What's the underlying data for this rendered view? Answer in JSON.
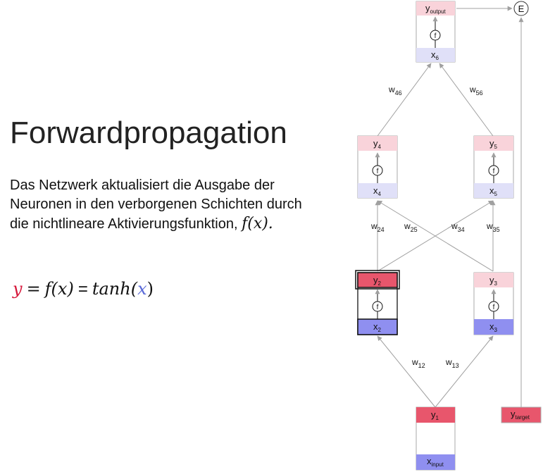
{
  "title": "Forwardpropagation",
  "description": "Das Netzwerk aktualisiert die Ausgabe der Neuronen in den verborgenen Schichten durch die nichtlineare Aktivierungsfunktion,",
  "description_math": "f(x).",
  "formula": {
    "y": "y",
    "eq": "=",
    "fx": "f(x)",
    "eq2": "=",
    "tanh": "tanh(",
    "x": "x",
    "close": ")"
  },
  "colors": {
    "y_active": "#e8566c",
    "y_light": "#f9d3da",
    "x_active": "#8f8ff0",
    "x_light": "#e0e0f8",
    "formula_y": "#d6173a",
    "formula_x": "#5a6ad8",
    "edge": "#a0a0a0"
  },
  "nodes": {
    "n6": {
      "y": "y",
      "y_sub": "output",
      "f": "f",
      "x": "x",
      "x_sub": "6"
    },
    "n4": {
      "y": "y",
      "y_sub": "4",
      "f": "f",
      "x": "x",
      "x_sub": "4"
    },
    "n5": {
      "y": "y",
      "y_sub": "5",
      "f": "f",
      "x": "x",
      "x_sub": "5"
    },
    "n2": {
      "y": "y",
      "y_sub": "2",
      "f": "f",
      "x": "x",
      "x_sub": "2"
    },
    "n3": {
      "y": "y",
      "y_sub": "3",
      "f": "f",
      "x": "x",
      "x_sub": "3"
    },
    "n1": {
      "y": "y",
      "y_sub": "1",
      "x": "x",
      "x_sub": "input"
    },
    "target": {
      "y": "y",
      "y_sub": "target"
    },
    "error": {
      "label": "E"
    }
  },
  "weights": {
    "w46": {
      "w": "w",
      "sub": "46"
    },
    "w56": {
      "w": "w",
      "sub": "56"
    },
    "w24": {
      "w": "w",
      "sub": "24"
    },
    "w25": {
      "w": "w",
      "sub": "25"
    },
    "w34": {
      "w": "w",
      "sub": "34"
    },
    "w35": {
      "w": "w",
      "sub": "35"
    },
    "w12": {
      "w": "w",
      "sub": "12"
    },
    "w13": {
      "w": "w",
      "sub": "13"
    }
  }
}
